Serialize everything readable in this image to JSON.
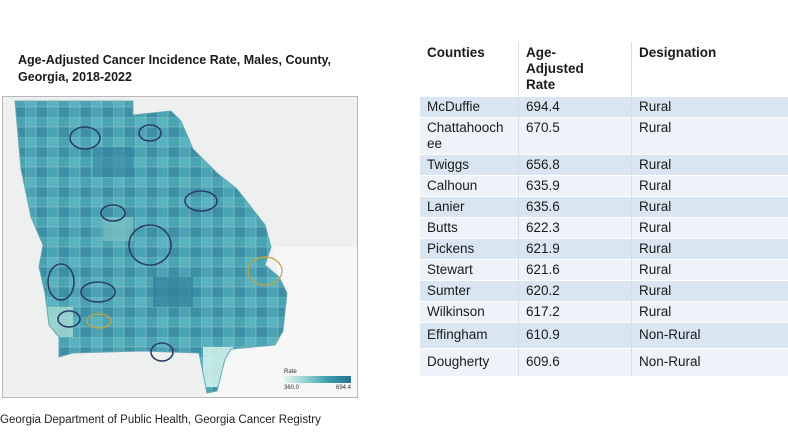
{
  "map": {
    "title": "Age-Adjusted Cancer Incidence Rate, Males, County, Georgia, 2018-2022",
    "legend_title": "Rate",
    "legend_min": "360.0",
    "legend_max": "694.4",
    "colors": {
      "low": "#e3f4f3",
      "mid": "#3a9cab",
      "high": "#2a6f8e"
    }
  },
  "source": "Georgia Department of Public Health, Georgia Cancer Registry",
  "table": {
    "headers": [
      "Counties",
      "Age-Adjusted Rate",
      "Designation"
    ],
    "rows": [
      {
        "county": "McDuffie",
        "rate": "694.4",
        "designation": "Rural"
      },
      {
        "county": "Chattahoochee",
        "rate": "670.5",
        "designation": "Rural"
      },
      {
        "county": "Twiggs",
        "rate": "656.8",
        "designation": "Rural"
      },
      {
        "county": "Calhoun",
        "rate": "635.9",
        "designation": "Rural"
      },
      {
        "county": "Lanier",
        "rate": "635.6",
        "designation": "Rural"
      },
      {
        "county": "Butts",
        "rate": "622.3",
        "designation": "Rural"
      },
      {
        "county": "Pickens",
        "rate": "621.9",
        "designation": "Rural"
      },
      {
        "county": "Stewart",
        "rate": "621.6",
        "designation": "Rural"
      },
      {
        "county": "Sumter",
        "rate": "620.2",
        "designation": "Rural"
      },
      {
        "county": "Wilkinson",
        "rate": "617.2",
        "designation": "Rural"
      },
      {
        "county": "Effingham",
        "rate": "610.9",
        "designation": "Non-Rural"
      },
      {
        "county": "Dougherty",
        "rate": "609.6",
        "designation": "Non-Rural"
      }
    ]
  }
}
